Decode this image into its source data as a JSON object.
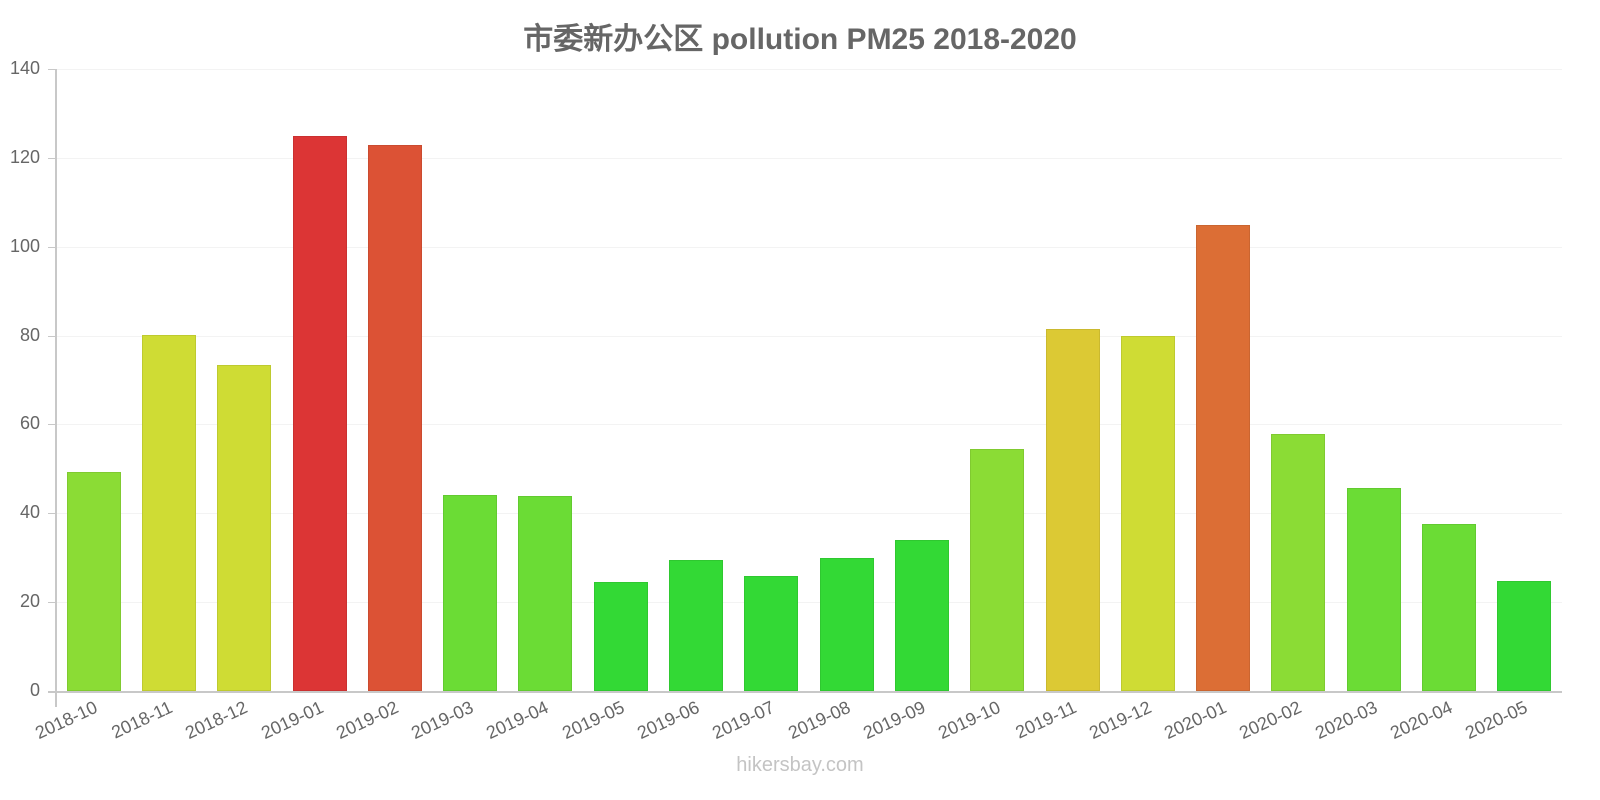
{
  "chart_data": {
    "type": "bar",
    "title": "市委新办公区 pollution PM25 2018-2020",
    "xlabel": "",
    "ylabel": "",
    "ylim": [
      0,
      140
    ],
    "yticks": [
      0,
      20,
      40,
      60,
      80,
      100,
      120,
      140
    ],
    "grid": true,
    "legend": null,
    "categories": [
      "2018-10",
      "2018-11",
      "2018-12",
      "2019-01",
      "2019-02",
      "2019-03",
      "2019-04",
      "2019-05",
      "2019-06",
      "2019-07",
      "2019-08",
      "2019-09",
      "2019-10",
      "2019-11",
      "2019-12",
      "2020-01",
      "2020-02",
      "2020-03",
      "2020-04",
      "2020-05"
    ],
    "values": [
      49.3,
      80.1,
      73.4,
      124.9,
      122.9,
      44.1,
      43.9,
      24.5,
      29.5,
      25.9,
      29.9,
      34.0,
      54.5,
      81.5,
      79.9,
      104.9,
      57.8,
      45.7,
      37.6,
      24.8
    ],
    "colors": [
      "#8bdc35",
      "#cfdc34",
      "#cfdc34",
      "#dc3535",
      "#dc5235",
      "#6bdc35",
      "#6bdc35",
      "#33d935",
      "#33d935",
      "#33d935",
      "#33d935",
      "#33d935",
      "#8bdc35",
      "#dcc934",
      "#cfdc34",
      "#dc6e35",
      "#8bdc35",
      "#6bdc35",
      "#6bdc35",
      "#33d935"
    ]
  },
  "watermark": "hikersbay.com"
}
